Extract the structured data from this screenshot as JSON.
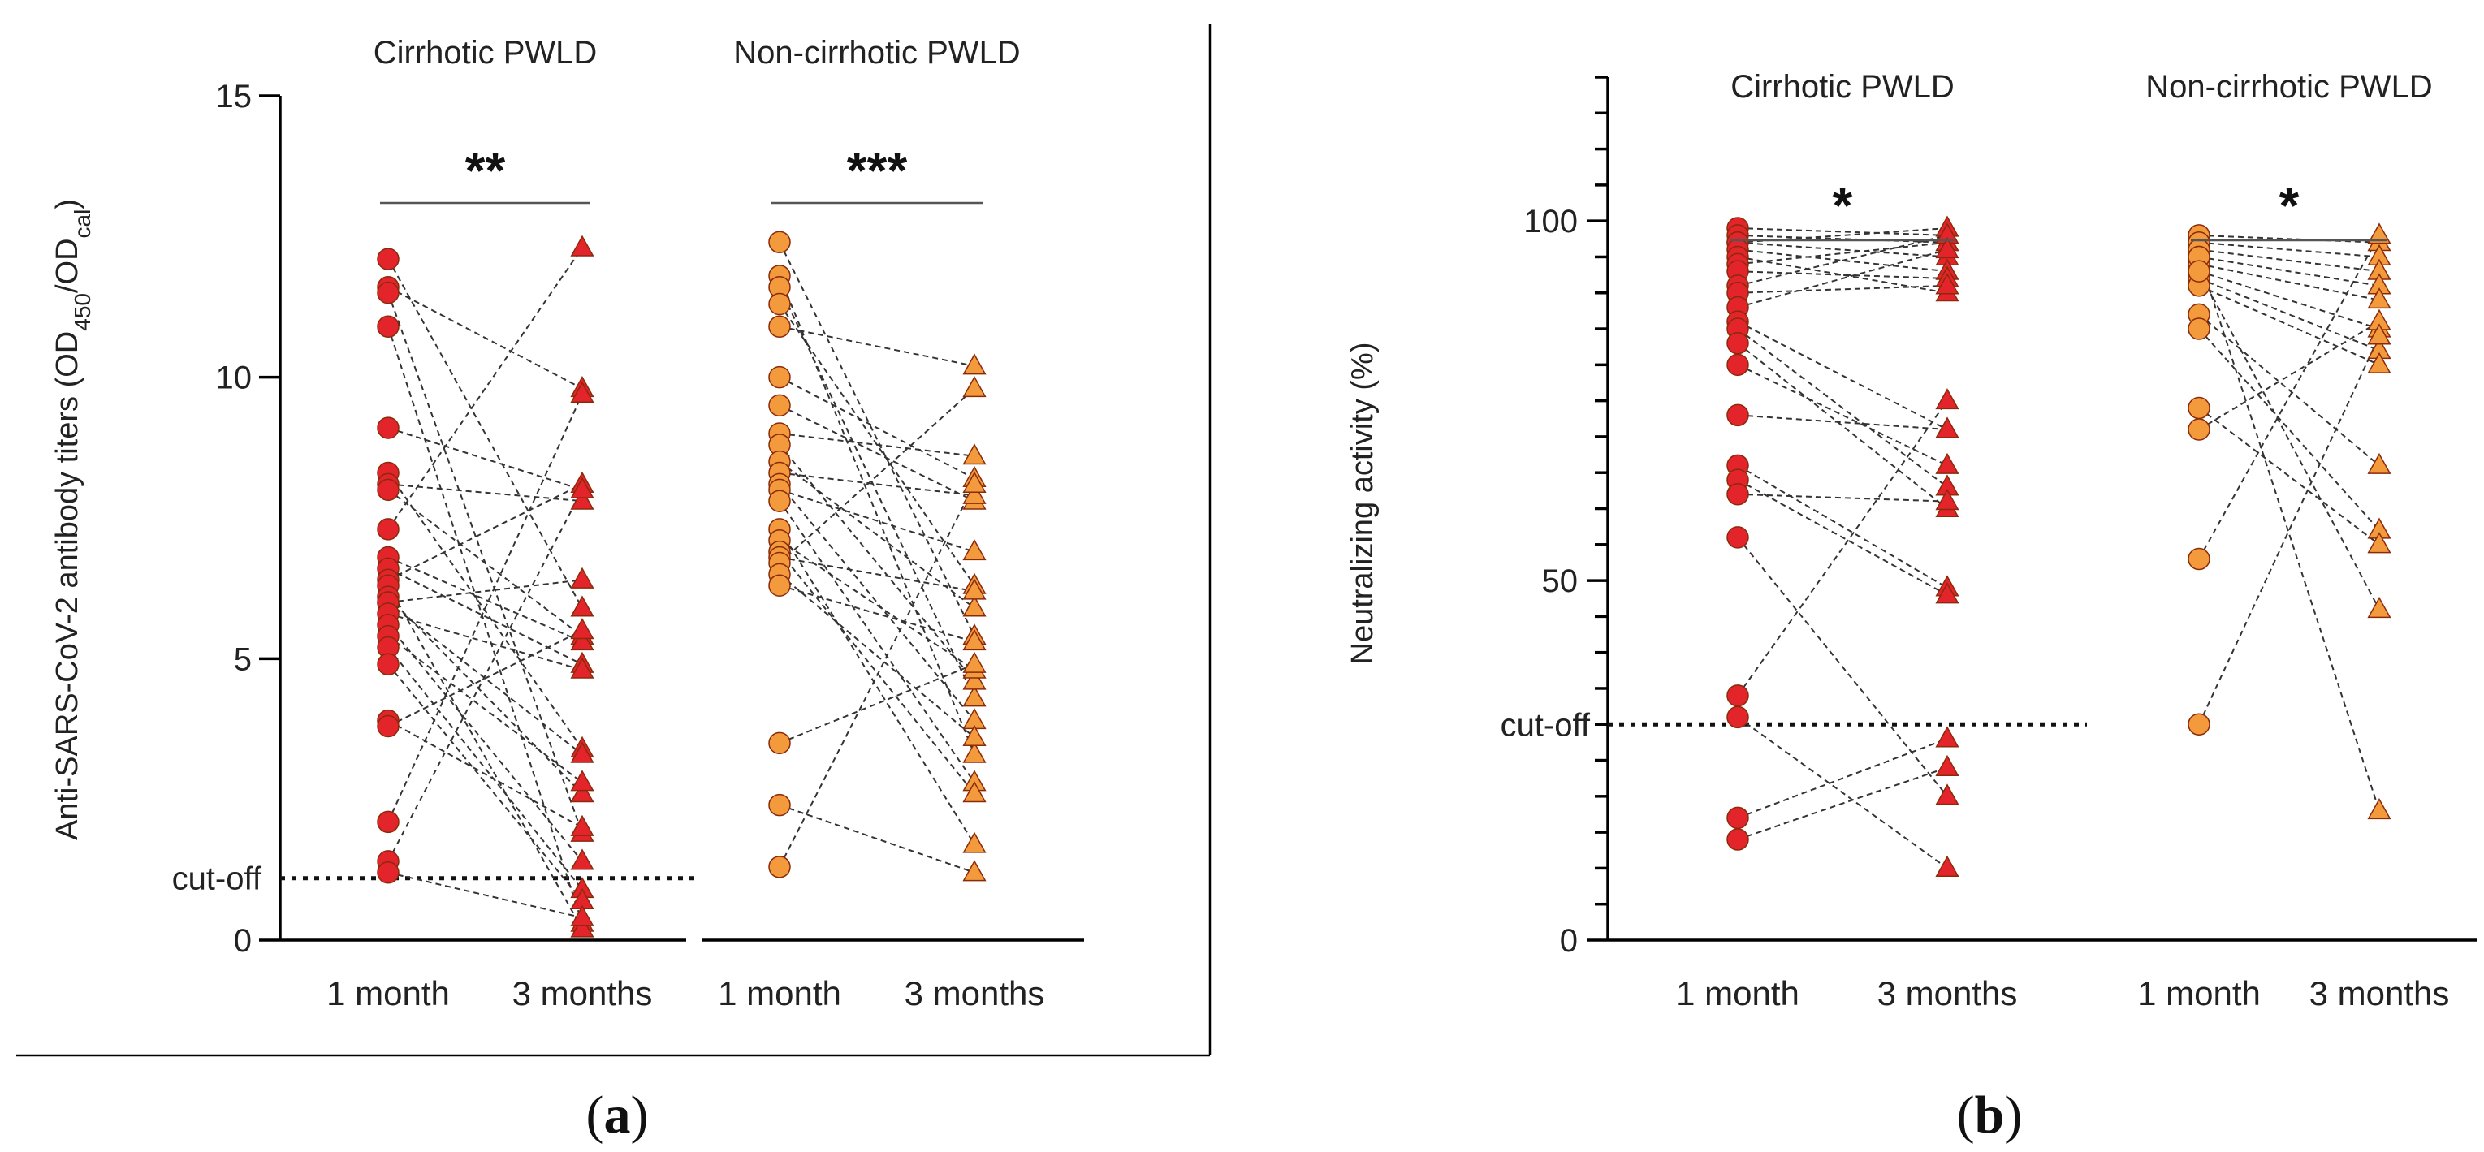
{
  "chart_data": [
    {
      "type": "scatter",
      "panel_label": "a",
      "ylabel_main": "Anti-SARS-CoV-2 antibody titers (OD",
      "ylabel_sub1": "450",
      "ylabel_mid": "/OD",
      "ylabel_sub2": "cal",
      "ylabel_end": ")",
      "ylim": [
        0,
        15
      ],
      "yticks": [
        "0",
        "5",
        "10",
        "15"
      ],
      "ytick_values": [
        0,
        5,
        10,
        15
      ],
      "minor_ticks": false,
      "cutoff_label": "cut-off",
      "cutoff_value": 1.1,
      "categories": [
        "1 month",
        "3 months",
        "1 month",
        "3 months"
      ],
      "groups": [
        {
          "name": "Cirrhotic PWLD",
          "significance": "**",
          "color": "#e3242b",
          "pairs": [
            [
              12.1,
              5.9
            ],
            [
              11.6,
              9.8
            ],
            [
              11.5,
              1.9
            ],
            [
              10.9,
              0.3
            ],
            [
              9.1,
              8.0
            ],
            [
              8.3,
              3.4
            ],
            [
              8.1,
              7.8
            ],
            [
              8.0,
              5.4
            ],
            [
              7.3,
              12.3
            ],
            [
              6.8,
              5.3
            ],
            [
              6.6,
              4.9
            ],
            [
              6.4,
              8.1
            ],
            [
              6.3,
              0.2
            ],
            [
              6.1,
              2.6
            ],
            [
              6.0,
              3.3
            ],
            [
              6.0,
              6.4
            ],
            [
              5.8,
              4.8
            ],
            [
              5.6,
              1.4
            ],
            [
              5.4,
              2.8
            ],
            [
              5.2,
              0.9
            ],
            [
              4.9,
              0.7
            ],
            [
              3.9,
              2.0
            ],
            [
              3.8,
              5.5
            ],
            [
              2.1,
              9.7
            ],
            [
              1.4,
              8.0
            ],
            [
              1.2,
              0.4
            ]
          ]
        },
        {
          "name": "Non-cirrhotic PWLD",
          "significance": "***",
          "color": "#f39a3c",
          "pairs": [
            [
              12.4,
              5.4
            ],
            [
              11.8,
              3.3
            ],
            [
              11.6,
              4.3
            ],
            [
              11.3,
              6.3
            ],
            [
              10.9,
              10.2
            ],
            [
              10.0,
              8.2
            ],
            [
              9.5,
              7.8
            ],
            [
              9.0,
              8.6
            ],
            [
              8.8,
              4.6
            ],
            [
              8.5,
              5.9
            ],
            [
              8.3,
              7.9
            ],
            [
              8.1,
              3.9
            ],
            [
              8.0,
              6.9
            ],
            [
              7.8,
              2.8
            ],
            [
              7.3,
              1.7
            ],
            [
              7.1,
              4.8
            ],
            [
              6.9,
              2.6
            ],
            [
              6.8,
              6.2
            ],
            [
              6.7,
              9.8
            ],
            [
              6.5,
              3.6
            ],
            [
              6.3,
              5.3
            ],
            [
              3.5,
              4.9
            ],
            [
              2.4,
              1.2
            ],
            [
              1.3,
              8.1
            ]
          ]
        }
      ]
    },
    {
      "type": "scatter",
      "panel_label": "b",
      "ylabel": "Neutralizing activity (%)",
      "ylim": [
        0,
        120
      ],
      "yticks": [
        "0",
        "50",
        "100"
      ],
      "ytick_values": [
        0,
        50,
        100
      ],
      "minor_ticks": true,
      "cutoff_label": "cut-off",
      "cutoff_value": 30,
      "categories": [
        "1 month",
        "3 months",
        "1 month",
        "3 months"
      ],
      "groups": [
        {
          "name": "Cirrhotic PWLD",
          "significance": "*",
          "color": "#e3242b",
          "pairs": [
            [
              99,
              98
            ],
            [
              98,
              97
            ],
            [
              97,
              99
            ],
            [
              97,
              95
            ],
            [
              96,
              93
            ],
            [
              95,
              90
            ],
            [
              94,
              97
            ],
            [
              93,
              92
            ],
            [
              91,
              98
            ],
            [
              90,
              91
            ],
            [
              88,
              96
            ],
            [
              86,
              71
            ],
            [
              85,
              63
            ],
            [
              83,
              60
            ],
            [
              80,
              66
            ],
            [
              73,
              71
            ],
            [
              66,
              49
            ],
            [
              64,
              48
            ],
            [
              62,
              61
            ],
            [
              56,
              20
            ],
            [
              34,
              75
            ],
            [
              17,
              28
            ],
            [
              14,
              24
            ],
            [
              31,
              10
            ]
          ]
        },
        {
          "name": "Non-cirrhotic PWLD",
          "significance": "*",
          "color": "#f39a3c",
          "pairs": [
            [
              98,
              97
            ],
            [
              97,
              95
            ],
            [
              96,
              93
            ],
            [
              95,
              91
            ],
            [
              94,
              89
            ],
            [
              93,
              85
            ],
            [
              92,
              82
            ],
            [
              91,
              80
            ],
            [
              87,
              66
            ],
            [
              85,
              57
            ],
            [
              74,
              55
            ],
            [
              71,
              86
            ],
            [
              53,
              98
            ],
            [
              30,
              84
            ],
            [
              95,
              18
            ],
            [
              93,
              46
            ]
          ]
        }
      ]
    }
  ]
}
